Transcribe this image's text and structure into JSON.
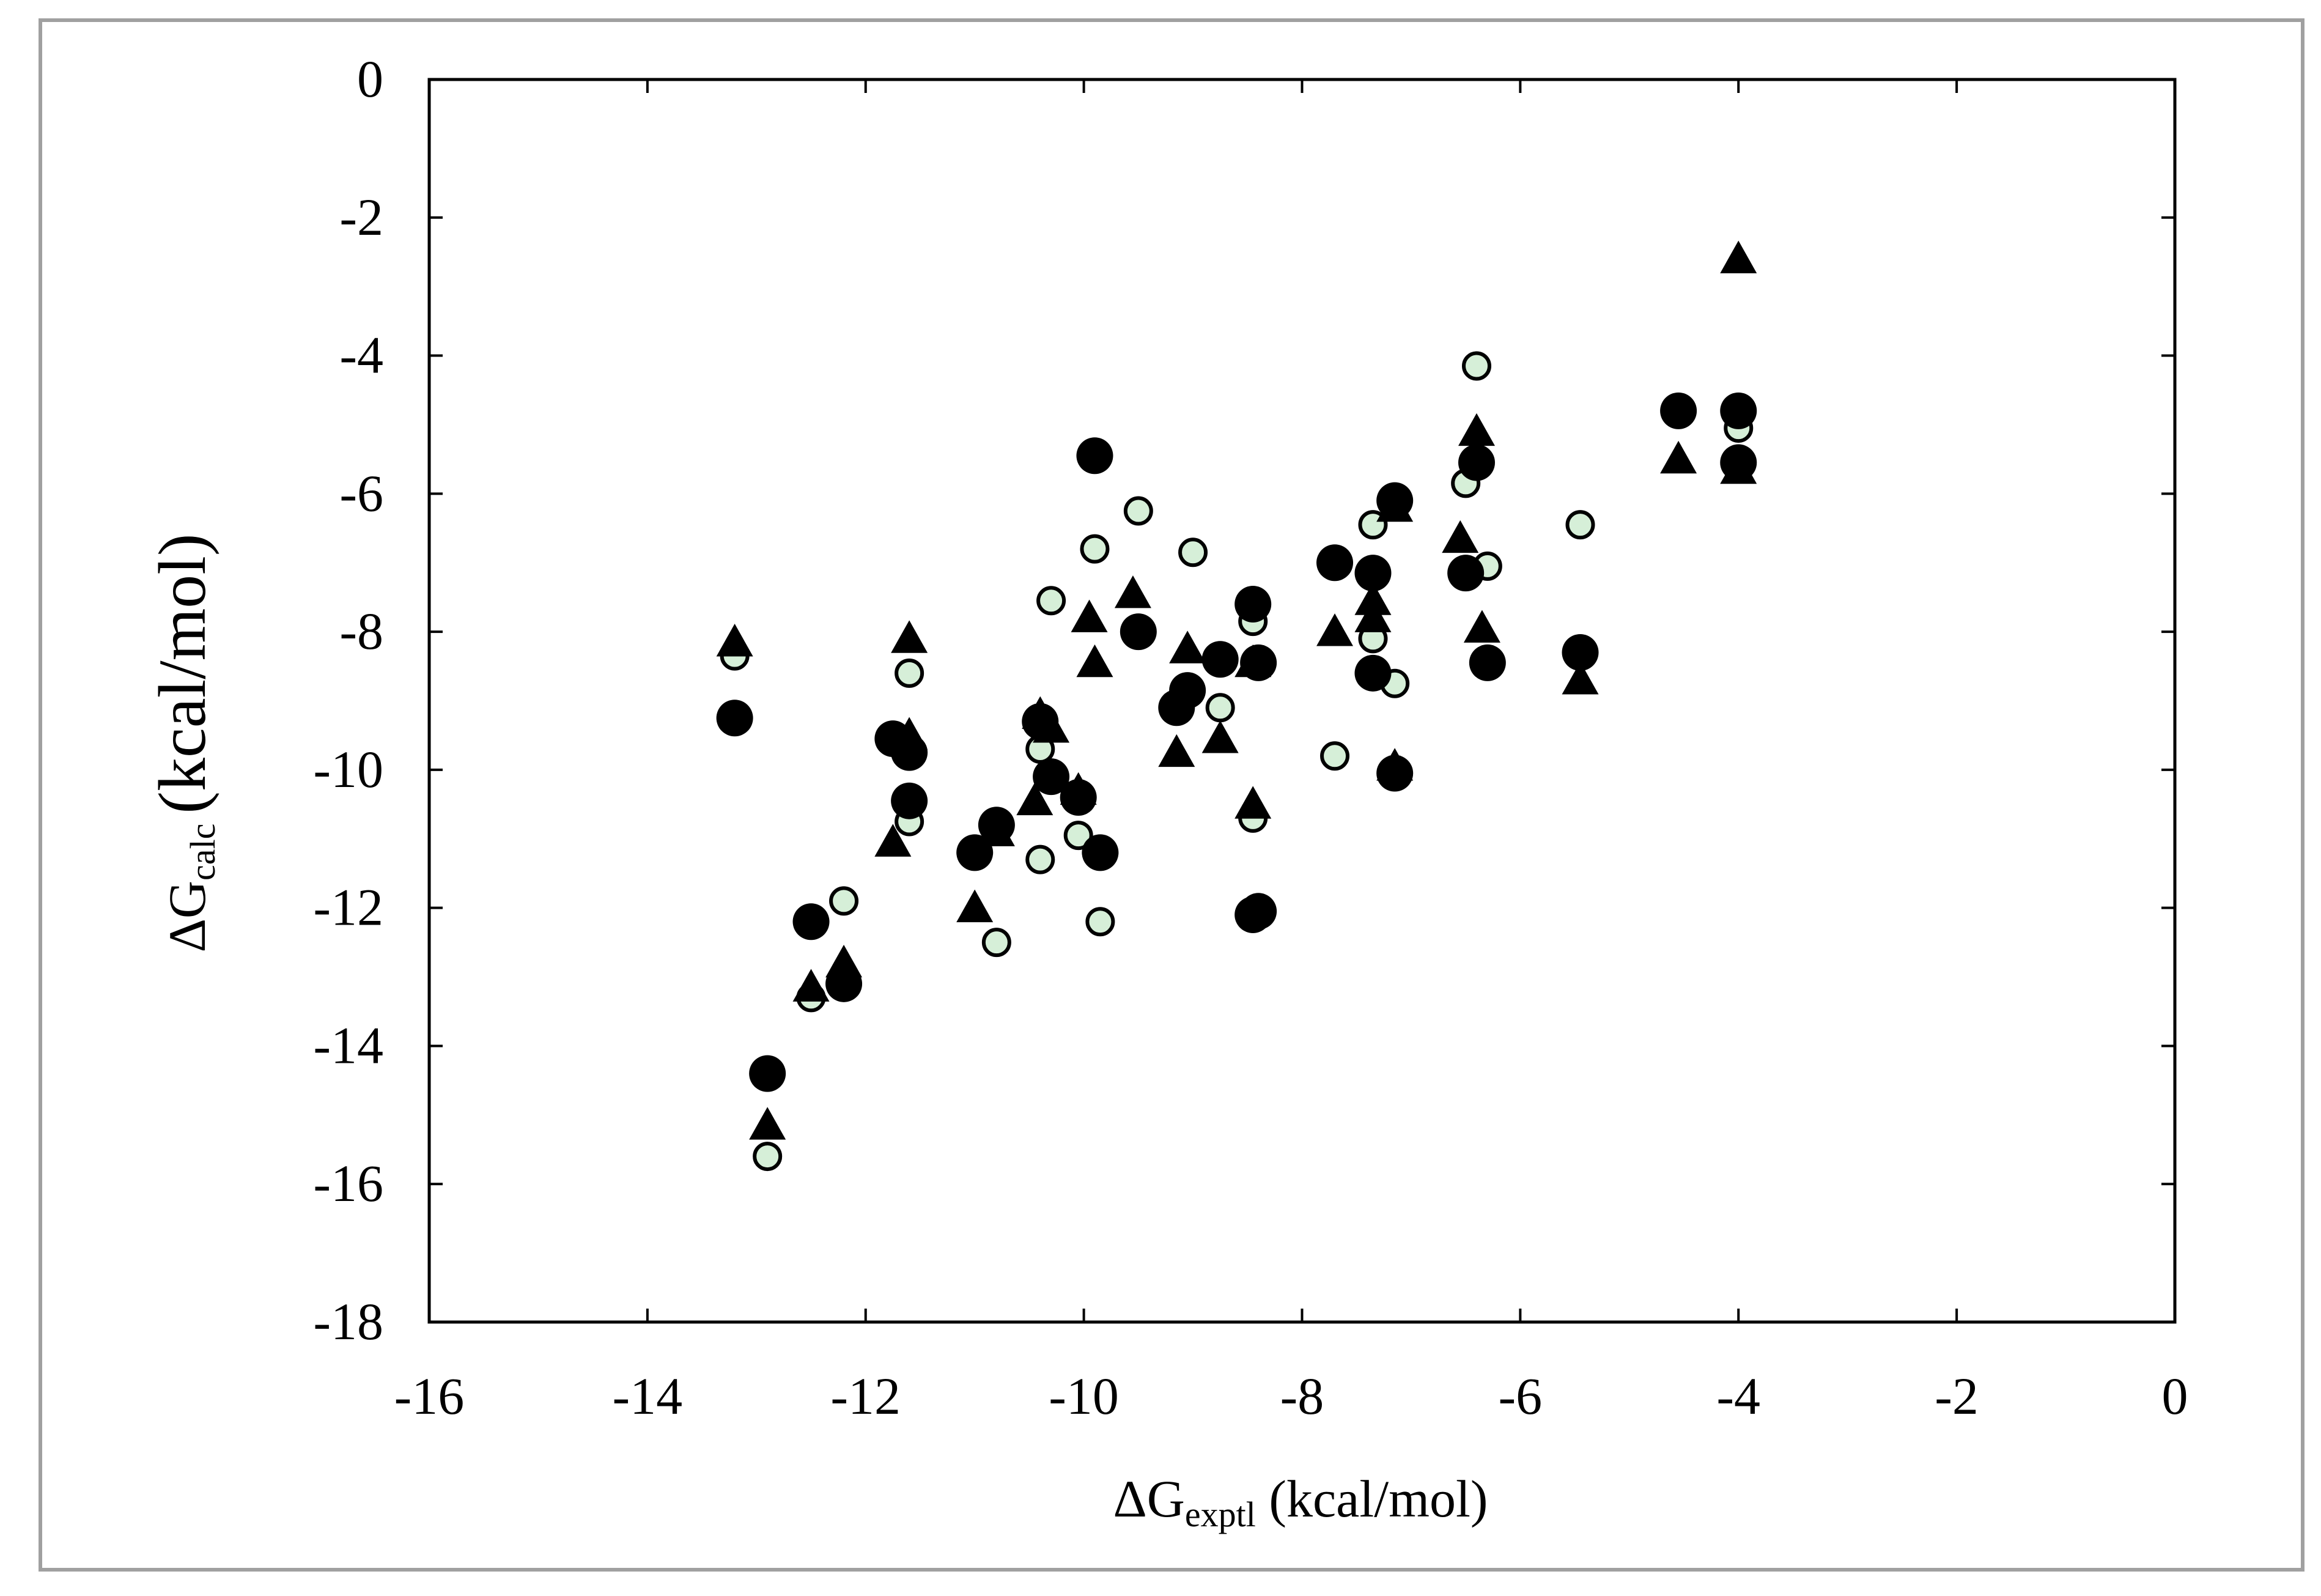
{
  "chart_data": {
    "type": "scatter",
    "title": "",
    "xlabel": {
      "main": "ΔG",
      "sub": "exptl",
      "unit": " (kcal/mol)"
    },
    "ylabel": {
      "main": "ΔG",
      "sub": "calc",
      "unit": "(kcal/mol)"
    },
    "xlim": [
      -16,
      0
    ],
    "ylim": [
      -18,
      0
    ],
    "xticks": [
      -16,
      -14,
      -12,
      -10,
      -8,
      -6,
      -4,
      -2,
      0
    ],
    "yticks": [
      0,
      -2,
      -4,
      -6,
      -8,
      -10,
      -12,
      -14,
      -16,
      -18
    ],
    "grid": false,
    "legend": "none",
    "colors": {
      "filled": "#000000",
      "light_fill": "#d6efd8",
      "axis": "#000000",
      "frame": "#a0a0a0"
    },
    "series": [
      {
        "marker": "circle-light",
        "points": [
          [
            -13.2,
            -8.35
          ],
          [
            -12.9,
            -15.6
          ],
          [
            -12.5,
            -13.3
          ],
          [
            -12.2,
            -11.9
          ],
          [
            -11.6,
            -8.6
          ],
          [
            -11.6,
            -10.75
          ],
          [
            -10.8,
            -12.5
          ],
          [
            -10.4,
            -9.7
          ],
          [
            -10.4,
            -11.3
          ],
          [
            -10.3,
            -7.55
          ],
          [
            -10.05,
            -10.95
          ],
          [
            -9.9,
            -6.8
          ],
          [
            -9.85,
            -12.2
          ],
          [
            -9.5,
            -6.25
          ],
          [
            -9.0,
            -6.85
          ],
          [
            -8.75,
            -9.1
          ],
          [
            -8.45,
            -7.85
          ],
          [
            -8.45,
            -10.7
          ],
          [
            -7.7,
            -9.8
          ],
          [
            -7.35,
            -6.45
          ],
          [
            -7.35,
            -8.1
          ],
          [
            -7.15,
            -8.75
          ],
          [
            -6.5,
            -5.85
          ],
          [
            -6.4,
            -4.15
          ],
          [
            -6.3,
            -7.05
          ],
          [
            -5.45,
            -6.45
          ],
          [
            -4.55,
            -4.75
          ],
          [
            -4.0,
            -5.05
          ],
          [
            -4.0,
            -5.6
          ]
        ]
      },
      {
        "marker": "triangle-filled",
        "points": [
          [
            -13.2,
            -8.15
          ],
          [
            -12.9,
            -15.15
          ],
          [
            -12.5,
            -13.15
          ],
          [
            -12.2,
            -12.8
          ],
          [
            -11.75,
            -11.05
          ],
          [
            -11.6,
            -8.1
          ],
          [
            -11.6,
            -9.5
          ],
          [
            -11.0,
            -12.0
          ],
          [
            -10.8,
            -10.9
          ],
          [
            -10.45,
            -10.45
          ],
          [
            -10.4,
            -9.2
          ],
          [
            -10.3,
            -9.4
          ],
          [
            -10.05,
            -10.3
          ],
          [
            -9.95,
            -7.8
          ],
          [
            -9.9,
            -8.45
          ],
          [
            -9.55,
            -7.45
          ],
          [
            -9.15,
            -9.75
          ],
          [
            -9.05,
            -8.25
          ],
          [
            -8.75,
            -9.55
          ],
          [
            -8.45,
            -8.45
          ],
          [
            -8.45,
            -10.5
          ],
          [
            -7.7,
            -8.0
          ],
          [
            -7.35,
            -7.55
          ],
          [
            -7.35,
            -7.8
          ],
          [
            -7.15,
            -6.2
          ],
          [
            -7.15,
            -9.95
          ],
          [
            -6.55,
            -6.65
          ],
          [
            -6.4,
            -5.1
          ],
          [
            -6.35,
            -7.95
          ],
          [
            -5.45,
            -8.7
          ],
          [
            -4.55,
            -5.5
          ],
          [
            -4.0,
            -2.6
          ],
          [
            -4.0,
            -5.65
          ]
        ]
      },
      {
        "marker": "circle-filled",
        "points": [
          [
            -13.2,
            -9.25
          ],
          [
            -12.9,
            -14.4
          ],
          [
            -12.5,
            -12.2
          ],
          [
            -12.2,
            -13.1
          ],
          [
            -11.75,
            -9.55
          ],
          [
            -11.6,
            -9.75
          ],
          [
            -11.6,
            -10.45
          ],
          [
            -11.0,
            -11.2
          ],
          [
            -10.8,
            -10.8
          ],
          [
            -10.4,
            -9.3
          ],
          [
            -10.3,
            -10.1
          ],
          [
            -10.05,
            -10.4
          ],
          [
            -9.9,
            -5.45
          ],
          [
            -9.85,
            -11.2
          ],
          [
            -9.5,
            -8.0
          ],
          [
            -9.15,
            -9.1
          ],
          [
            -9.05,
            -8.85
          ],
          [
            -8.75,
            -8.4
          ],
          [
            -8.45,
            -7.6
          ],
          [
            -8.45,
            -12.1
          ],
          [
            -8.4,
            -8.45
          ],
          [
            -8.4,
            -12.05
          ],
          [
            -7.7,
            -7.0
          ],
          [
            -7.35,
            -7.15
          ],
          [
            -7.35,
            -8.6
          ],
          [
            -7.15,
            -6.1
          ],
          [
            -7.15,
            -10.05
          ],
          [
            -6.5,
            -7.15
          ],
          [
            -6.4,
            -5.55
          ],
          [
            -6.3,
            -8.45
          ],
          [
            -5.45,
            -8.3
          ],
          [
            -4.55,
            -4.8
          ],
          [
            -4.0,
            -4.8
          ],
          [
            -4.0,
            -5.55
          ]
        ]
      }
    ]
  }
}
